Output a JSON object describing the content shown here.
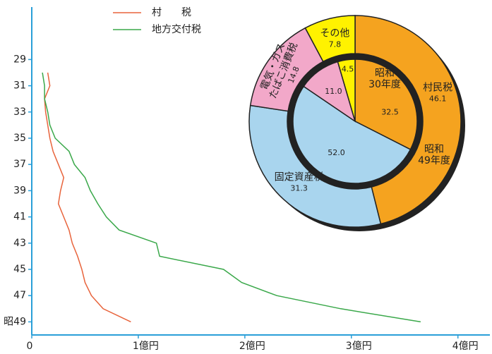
{
  "chart_data": [
    {
      "type": "line",
      "ylim": [
        25,
        50
      ],
      "y_inverted": true,
      "yticks": [
        29,
        31,
        33,
        35,
        37,
        39,
        41,
        43,
        45,
        47,
        {
          "value": 49,
          "label": "昭49"
        }
      ],
      "xlim": [
        0,
        4.3
      ],
      "xticks": [
        0,
        {
          "value": 1,
          "label": "1億円"
        },
        {
          "value": 2,
          "label": "2億円"
        },
        {
          "value": 3,
          "label": "3億円"
        },
        {
          "value": 4,
          "label": "4億円"
        }
      ],
      "x": [
        30,
        31,
        32,
        33,
        34,
        35,
        36,
        37,
        38,
        39,
        40,
        41,
        42,
        43,
        44,
        45,
        46,
        47,
        48,
        49
      ],
      "series": [
        {
          "name": "村　　税",
          "color": "#e8643c",
          "values": [
            0.15,
            0.17,
            0.12,
            0.13,
            0.15,
            0.17,
            0.2,
            0.25,
            0.3,
            0.27,
            0.25,
            0.3,
            0.35,
            0.38,
            0.43,
            0.47,
            0.5,
            0.56,
            0.67,
            0.93
          ]
        },
        {
          "name": "地方交付税",
          "color": "#3aa84a",
          "values": [
            0.1,
            0.12,
            0.12,
            0.15,
            0.17,
            0.22,
            0.35,
            0.4,
            0.5,
            0.55,
            0.62,
            0.7,
            0.82,
            1.17,
            1.2,
            1.8,
            1.97,
            2.3,
            2.9,
            3.65
          ]
        }
      ]
    },
    {
      "type": "donut",
      "colors": [
        "#f5a31f",
        "#a9d5ee",
        "#f2a8c9",
        "#fff200"
      ],
      "rings": [
        {
          "name_lines": [
            "昭和",
            "30年度"
          ],
          "values": [
            32.5,
            52.0,
            11.0,
            4.5
          ],
          "value_labels": [
            "32.5",
            "52.0",
            "11.0",
            "4.5"
          ]
        },
        {
          "name_lines": [
            "昭和",
            "49年度"
          ],
          "values": [
            46.1,
            31.3,
            14.8,
            7.8
          ],
          "category_lines": [
            [
              "村民税"
            ],
            [
              "固定資産税"
            ],
            [
              "電気・ガス",
              "たばこ消費税"
            ],
            [
              "その他"
            ]
          ]
        }
      ]
    }
  ]
}
